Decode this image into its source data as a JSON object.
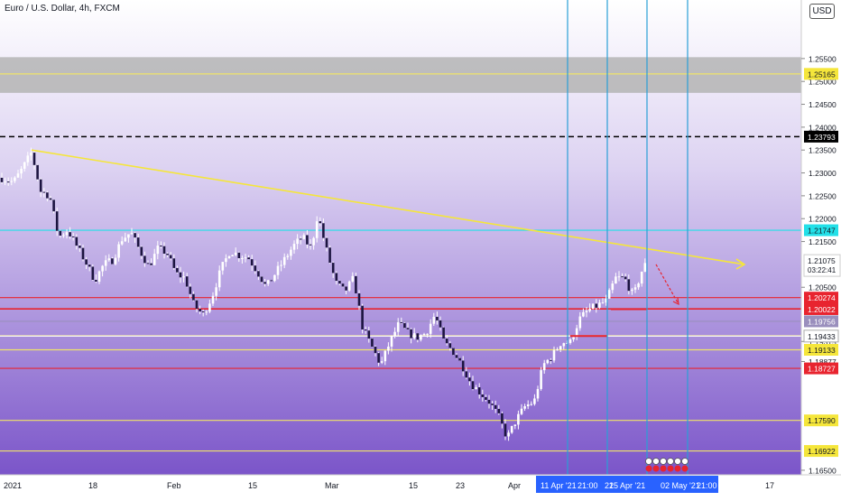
{
  "header": {
    "title": "Euro / U.S. Dollar, 4h, FXCM",
    "currency_button": "USD",
    "last_price_label": "1.21075",
    "countdown": "03:22:41"
  },
  "colors": {
    "background_top": "#ffffff",
    "background_bottom": "#7b55c9",
    "resistance_zone": "#b4b4b4",
    "trendline": "#f5e63b",
    "cyan_line": "#22e0e8",
    "red_line": "#e8242f",
    "yellow_line": "#f0e36a",
    "vertical_line": "#2a9fd6",
    "candles": "#ffffff",
    "time_badge": "#2962ff"
  },
  "chart_data": {
    "type": "candlestick",
    "symbol": "Euro / U.S. Dollar",
    "timeframe": "4h",
    "ylim": [
      1.164,
      1.2678
    ],
    "y_ticks": [
      1.255,
      1.25,
      1.245,
      1.24,
      1.235,
      1.23,
      1.225,
      1.22,
      1.215,
      1.205,
      1.19315,
      1.18877,
      1.165
    ],
    "x_tick_labels": [
      "2021",
      "18",
      "Feb",
      "15",
      "Mar",
      "15",
      "23",
      "Apr"
    ],
    "time_badges": [
      "11 Apr '21",
      "21:00",
      "21",
      "25 Apr '21",
      "02 May '21",
      "21:00",
      "17"
    ],
    "resistance_zone": [
      1.2475,
      1.2553
    ],
    "horizontal_levels": [
      {
        "price": 1.25165,
        "color": "yellow",
        "label": "1.25165"
      },
      {
        "price": 1.23793,
        "color": "black-dashed",
        "label": "1.23793"
      },
      {
        "price": 1.21747,
        "color": "cyan",
        "label": "1.21747"
      },
      {
        "price": 1.20274,
        "color": "red",
        "label": "1.20274"
      },
      {
        "price": 1.20031,
        "color": "red",
        "label": "1.20031"
      },
      {
        "price": 1.20022,
        "color": "red",
        "label": "1.20022"
      },
      {
        "price": 1.19756,
        "color": "gray",
        "label": "1.19756"
      },
      {
        "price": 1.19439,
        "color": "yellow",
        "label": "1.19439"
      },
      {
        "price": 1.19433,
        "color": "white",
        "label": "1.19433"
      },
      {
        "price": 1.19133,
        "color": "yellow",
        "label": "1.19133"
      },
      {
        "price": 1.18727,
        "color": "red",
        "label": "1.18727"
      },
      {
        "price": 1.1759,
        "color": "yellow",
        "label": "1.17590"
      },
      {
        "price": 1.16922,
        "color": "yellow",
        "label": "1.16922"
      }
    ],
    "trendline": {
      "from": {
        "x_index": 35,
        "price": 1.235
      },
      "to": {
        "x_index": 825,
        "price": 1.21
      }
    },
    "close_path": [
      [
        0,
        1.229
      ],
      [
        15,
        1.228
      ],
      [
        25,
        1.231
      ],
      [
        35,
        1.2345
      ],
      [
        45,
        1.226
      ],
      [
        55,
        1.225
      ],
      [
        65,
        1.216
      ],
      [
        75,
        1.2175
      ],
      [
        85,
        1.214
      ],
      [
        95,
        1.2105
      ],
      [
        105,
        1.2065
      ],
      [
        115,
        1.21
      ],
      [
        125,
        1.211
      ],
      [
        135,
        1.2155
      ],
      [
        145,
        1.217
      ],
      [
        155,
        1.213
      ],
      [
        165,
        1.2095
      ],
      [
        175,
        1.2135
      ],
      [
        185,
        1.2125
      ],
      [
        195,
        1.208
      ],
      [
        205,
        1.207
      ],
      [
        215,
        1.201
      ],
      [
        225,
        1.199
      ],
      [
        235,
        1.203
      ],
      [
        245,
        1.209
      ],
      [
        255,
        1.213
      ],
      [
        265,
        1.212
      ],
      [
        275,
        1.2115
      ],
      [
        285,
        1.2085
      ],
      [
        295,
        1.205
      ],
      [
        305,
        1.208
      ],
      [
        315,
        1.211
      ],
      [
        325,
        1.214
      ],
      [
        335,
        1.216
      ],
      [
        345,
        1.2135
      ],
      [
        352,
        1.221
      ],
      [
        362,
        1.213
      ],
      [
        372,
        1.206
      ],
      [
        382,
        1.204
      ],
      [
        392,
        1.207
      ],
      [
        402,
        1.196
      ],
      [
        412,
        1.192
      ],
      [
        422,
        1.188
      ],
      [
        432,
        1.193
      ],
      [
        442,
        1.197
      ],
      [
        452,
        1.195
      ],
      [
        462,
        1.194
      ],
      [
        472,
        1.195
      ],
      [
        482,
        1.199
      ],
      [
        492,
        1.193
      ],
      [
        502,
        1.191
      ],
      [
        512,
        1.188
      ],
      [
        522,
        1.184
      ],
      [
        532,
        1.182
      ],
      [
        542,
        1.18
      ],
      [
        552,
        1.177
      ],
      [
        562,
        1.172
      ],
      [
        572,
        1.176
      ],
      [
        582,
        1.179
      ],
      [
        592,
        1.18
      ],
      [
        602,
        1.188
      ],
      [
        612,
        1.19
      ],
      [
        622,
        1.193
      ],
      [
        632,
        1.193
      ],
      [
        642,
        1.198
      ],
      [
        652,
        1.2
      ],
      [
        662,
        1.201
      ],
      [
        672,
        1.202
      ],
      [
        682,
        1.207
      ],
      [
        692,
        1.207
      ],
      [
        702,
        1.203
      ],
      [
        712,
        1.209
      ],
      [
        718,
        1.2107
      ]
    ],
    "projection_arrow": {
      "from": [
        727,
        1.21
      ],
      "to": [
        752,
        1.2013
      ]
    },
    "vertical_lines_x": [
      629,
      673,
      717,
      762
    ],
    "red_segments": [
      {
        "x1": 632,
        "x2": 673,
        "price": 1.19433
      },
      {
        "x1": 677,
        "x2": 717,
        "price": 1.20022
      }
    ]
  }
}
